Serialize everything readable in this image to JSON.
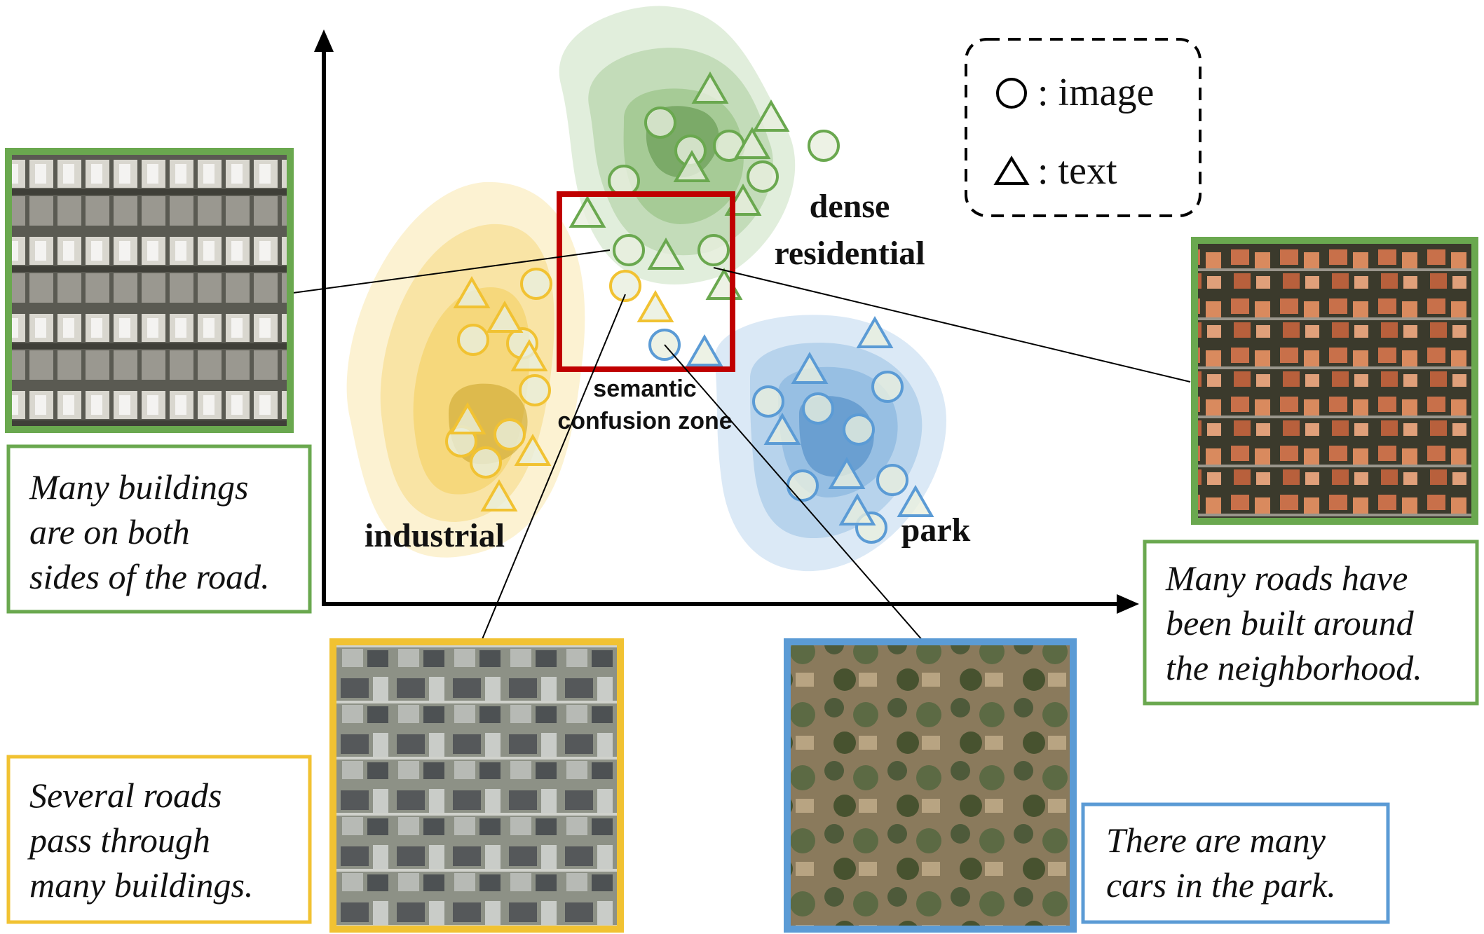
{
  "colors": {
    "dense_residential": "#6aa84f",
    "industrial": "#f1c232",
    "park": "#5b9bd5",
    "confusion_zone": "#c00000",
    "axis": "#000000"
  },
  "legend": {
    "image_label": ": image",
    "text_label": ": text",
    "image_icon": "circle-icon",
    "text_icon": "triangle-icon"
  },
  "clusters": {
    "dense_residential": "dense residential",
    "dense_residential_line1": "dense",
    "dense_residential_line2": "residential",
    "industrial": "industrial",
    "park": "park"
  },
  "confusion_zone": {
    "line1": "semantic",
    "line2": "confusion zone"
  },
  "examples": [
    {
      "id": "dense-residential-left",
      "category": "dense residential",
      "caption_lines": [
        "Many buildings",
        "are on both",
        "sides of the road."
      ]
    },
    {
      "id": "dense-residential-right",
      "category": "dense residential",
      "caption_lines": [
        "Many roads have",
        "been built around",
        "the neighborhood."
      ]
    },
    {
      "id": "industrial",
      "category": "industrial",
      "caption_lines": [
        "Several roads",
        "pass through",
        "many buildings."
      ]
    },
    {
      "id": "park",
      "category": "park",
      "caption_lines": [
        "There are many",
        "cars in the park."
      ]
    }
  ]
}
